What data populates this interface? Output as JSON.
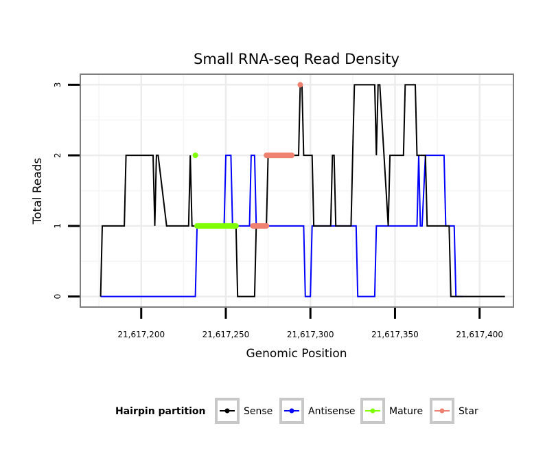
{
  "chart_data": {
    "type": "line",
    "title": "Small RNA-seq Read Density",
    "xlabel": "Genomic Position",
    "ylabel": "Total Reads",
    "xlim": [
      21617164,
      21617420
    ],
    "ylim": [
      -0.15,
      3.15
    ],
    "x_ticks": [
      21617200,
      21617250,
      21617300,
      21617350,
      21617400
    ],
    "x_tick_labels": [
      "21,617,200",
      "21,617,250",
      "21,617,300",
      "21,617,350",
      "21,617,400"
    ],
    "y_ticks": [
      0,
      1,
      2,
      3
    ],
    "y_tick_labels": [
      "0",
      "1",
      "2",
      "3"
    ],
    "grid": true,
    "legend": {
      "title": "Hairpin partition",
      "position": "bottom",
      "items": [
        {
          "label": "Sense",
          "color": "#000000"
        },
        {
          "label": "Antisense",
          "color": "#0000ff"
        },
        {
          "label": "Mature",
          "color": "#7fff00"
        },
        {
          "label": "Star",
          "color": "#f08070"
        }
      ]
    },
    "series": [
      {
        "name": "Sense",
        "color": "#000000",
        "x": [
          21617176,
          21617177,
          21617190,
          21617191,
          21617207,
          21617208,
          21617209,
          21617210,
          21617215,
          21617216,
          21617228,
          21617229,
          21617230,
          21617232,
          21617256,
          21617257,
          21617267,
          21617268,
          21617274,
          21617275,
          21617293,
          21617294,
          21617295,
          21617296,
          21617301,
          21617302,
          21617312,
          21617313,
          21617314,
          21617315,
          21617324,
          21617325,
          21617326,
          21617338,
          21617339,
          21617340,
          21617341,
          21617346,
          21617347,
          21617355,
          21617356,
          21617362,
          21617363,
          21617368,
          21617369,
          21617370,
          21617380,
          21617382,
          21617383,
          21617384,
          21617415
        ],
        "y": [
          0,
          1,
          1,
          2,
          2,
          1,
          2,
          2,
          1,
          1,
          1,
          2,
          1,
          1,
          1,
          0,
          0,
          1,
          1,
          2,
          2,
          3,
          3,
          2,
          2,
          1,
          1,
          2,
          2,
          1,
          1,
          2,
          3,
          3,
          2,
          3,
          3,
          1,
          2,
          2,
          3,
          3,
          2,
          2,
          1,
          1,
          1,
          1,
          0,
          0,
          0
        ]
      },
      {
        "name": "Antisense",
        "color": "#0000ff",
        "x": [
          21617176,
          21617232,
          21617233,
          21617249,
          21617250,
          21617253,
          21617254,
          21617264,
          21617265,
          21617267,
          21617268,
          21617296,
          21617297,
          21617300,
          21617301,
          21617306,
          21617307,
          21617327,
          21617328,
          21617338,
          21617339,
          21617363,
          21617364,
          21617365,
          21617366,
          21617368,
          21617369,
          21617379,
          21617380,
          21617385,
          21617386,
          21617390
        ],
        "y": [
          0,
          0,
          1,
          1,
          2,
          2,
          1,
          1,
          2,
          2,
          1,
          1,
          0,
          0,
          1,
          1,
          1,
          1,
          0,
          0,
          1,
          1,
          2,
          1,
          1,
          2,
          2,
          2,
          1,
          1,
          0,
          0
        ]
      }
    ],
    "segments": [
      {
        "name": "Mature",
        "color": "#7fff00",
        "x_start": 21617232,
        "x_end": 21617232,
        "y": 2
      },
      {
        "name": "Mature",
        "color": "#7fff00",
        "x_start": 21617233,
        "x_end": 21617256,
        "y": 1
      },
      {
        "name": "Star",
        "color": "#f08070",
        "x_start": 21617266,
        "x_end": 21617274,
        "y": 1
      },
      {
        "name": "Star",
        "color": "#f08070",
        "x_start": 21617274,
        "x_end": 21617289,
        "y": 2
      },
      {
        "name": "Star",
        "color": "#f08070",
        "x_start": 21617294,
        "x_end": 21617294,
        "y": 3
      }
    ]
  }
}
